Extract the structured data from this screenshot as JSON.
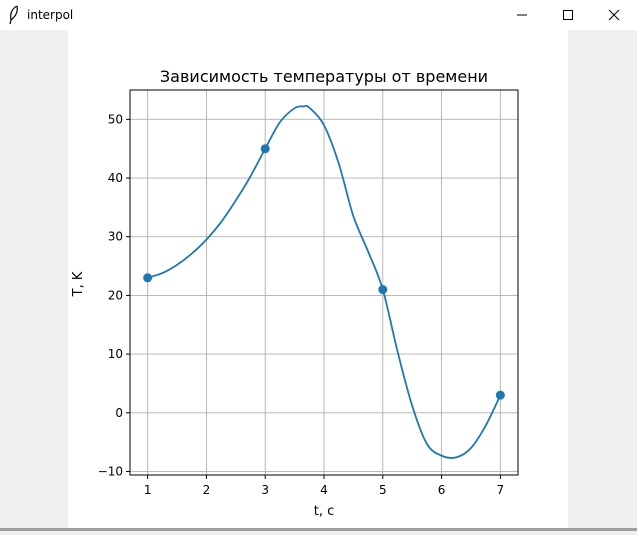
{
  "window": {
    "title": "interpol",
    "icon": "feather-icon",
    "buttons": [
      "minimize-icon",
      "maximize-icon",
      "close-icon"
    ]
  },
  "chart_data": {
    "type": "line",
    "title": "Зависимость температуры от времени",
    "xlabel": "t, с",
    "ylabel": "T, K",
    "xlim": [
      0.7,
      7.3
    ],
    "ylim": [
      -10.6,
      55
    ],
    "xticks": [
      1,
      2,
      3,
      4,
      5,
      6,
      7
    ],
    "yticks": [
      -10,
      0,
      10,
      20,
      30,
      40,
      50
    ],
    "grid": true,
    "color": "#1f77b4",
    "series": [
      {
        "type": "scatter",
        "x": [
          1,
          3,
          5,
          7
        ],
        "y": [
          23,
          45,
          21,
          3
        ]
      },
      {
        "type": "line",
        "x": [
          1,
          1.25,
          1.5,
          1.75,
          2,
          2.25,
          2.5,
          2.75,
          3,
          3.25,
          3.5,
          3.65,
          3.75,
          4,
          4.25,
          4.5,
          4.75,
          5,
          5.25,
          5.5,
          5.75,
          6,
          6.25,
          6.5,
          6.75,
          7
        ],
        "y": [
          23,
          23.8,
          25.2,
          27.1,
          29.5,
          32.5,
          36.2,
          40.3,
          45,
          49.5,
          51.9,
          52.2,
          52,
          49,
          42.5,
          33.5,
          27.5,
          21,
          10.5,
          1.2,
          -5.3,
          -7.3,
          -7.6,
          -6,
          -2.2,
          3
        ]
      }
    ]
  }
}
